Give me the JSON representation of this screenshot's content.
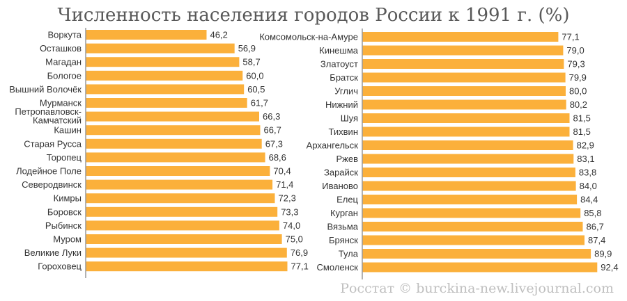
{
  "chart_data": {
    "type": "bar",
    "orientation": "horizontal",
    "title": "Численность населения городов России к 1991 г. (%)",
    "source": "Росстат © burckina-new.livejournal.com",
    "bar_color": "#fbb03b",
    "axis_color": "#999999",
    "xlim": [
      0,
      100
    ],
    "panels": [
      {
        "categories": [
          "Воркута",
          "Осташков",
          "Магадан",
          "Бологое",
          "Вышний Волочёк",
          "Мурманск",
          "Петропавловск-Камчатский",
          "Кашин",
          "Старая Русса",
          "Торопец",
          "Лодейное Поле",
          "Северодвинск",
          "Кимры",
          "Боровск",
          "Рыбинск",
          "Муром",
          "Великие Луки",
          "Гороховец"
        ],
        "values": [
          46.2,
          56.9,
          58.7,
          60.0,
          60.5,
          61.7,
          66.3,
          66.7,
          67.3,
          68.6,
          70.4,
          71.4,
          72.3,
          73.3,
          74.0,
          75.0,
          76.9,
          77.1
        ],
        "value_labels": [
          "46,2",
          "56,9",
          "58,7",
          "60,0",
          "60,5",
          "61,7",
          "66,3",
          "66,7",
          "67,3",
          "68,6",
          "70,4",
          "71,4",
          "72,3",
          "73,3",
          "74,0",
          "75,0",
          "76,9",
          "77,1"
        ]
      },
      {
        "categories": [
          "Комсомольск-на-Амуре",
          "Кинешма",
          "Златоуст",
          "Братск",
          "Углич",
          "Нижний",
          "Шуя",
          "Тихвин",
          "Архангельск",
          "Ржев",
          "Зарайск",
          "Иваново",
          "Елец",
          "Курган",
          "Вязьма",
          "Брянск",
          "Тула",
          "Смоленск"
        ],
        "values": [
          77.1,
          79.0,
          79.3,
          79.9,
          80.0,
          80.2,
          81.5,
          81.5,
          82.9,
          83.1,
          83.8,
          84.0,
          84.4,
          85.8,
          86.7,
          87.4,
          89.9,
          92.4
        ],
        "value_labels": [
          "77,1",
          "79,0",
          "79,3",
          "79,9",
          "80,0",
          "80,2",
          "81,5",
          "81,5",
          "82,9",
          "83,1",
          "83,8",
          "84,0",
          "84,4",
          "85,8",
          "86,7",
          "87,4",
          "89,9",
          "92,4"
        ]
      }
    ]
  }
}
